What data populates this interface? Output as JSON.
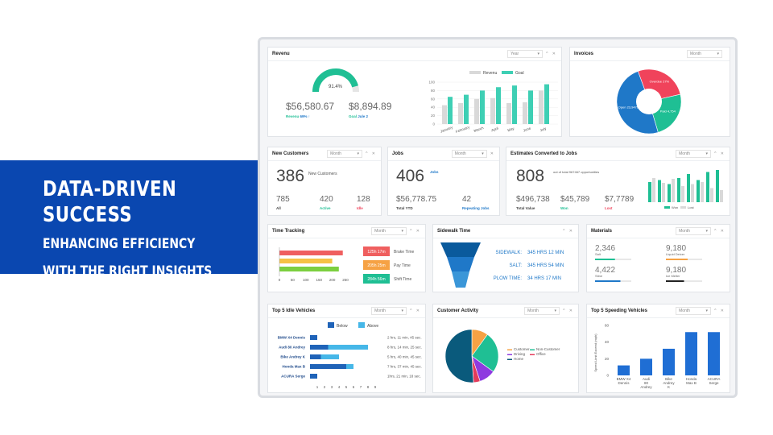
{
  "banner": {
    "title": "DATA-DRIVEN SUCCESS",
    "line1": "ENHANCING EFFICIENCY",
    "line2": "WITH THE RIGHT INSIGHTS"
  },
  "revenue": {
    "title": "Revenu",
    "period": "Year",
    "gauge_pct": "91.4%",
    "gauge_value": 0.914,
    "revenue_value": "$56,580.67",
    "revenue_label": "Revenu",
    "revenue_pct": "69% ↑",
    "goal_value": "$8,894.89",
    "goal_label": "Goal",
    "goal_date": "Jule 2",
    "chart": {
      "legend": [
        "Revenu",
        "Goal"
      ],
      "yticks": [
        "100",
        "80",
        "60",
        "40",
        "20",
        "0"
      ],
      "months": [
        "January",
        "February",
        "March",
        "April",
        "May",
        "June",
        "July"
      ],
      "revenu": [
        45,
        50,
        60,
        62,
        50,
        52,
        80
      ],
      "goal": [
        65,
        70,
        80,
        88,
        92,
        80,
        95
      ],
      "colors": [
        "#d9d9d9",
        "#3ecfb4"
      ]
    }
  },
  "invoices": {
    "title": "Invoices",
    "period": "Month",
    "slices": [
      {
        "label": "Overdue 27%",
        "value": 27,
        "color": "#f0435b"
      },
      {
        "label": "Paid 4,754",
        "value": 24,
        "color": "#1fbf94"
      },
      {
        "label": "Open 23,9478",
        "value": 49,
        "color": "#1f78c8"
      }
    ]
  },
  "new_customers": {
    "title": "New Customers",
    "period": "Month",
    "value": "386",
    "label": "New Customers",
    "all_value": "785",
    "all_label": "All",
    "active_value": "420",
    "active_label": "Active",
    "idle_value": "128",
    "idle_label": "Idle"
  },
  "jobs": {
    "title": "Jobs",
    "period": "Month",
    "value": "406",
    "tag": "Jobs",
    "ytd_value": "$56,778.75",
    "ytd_label": "Total YTD",
    "rep_value": "42",
    "rep_label": "Repeating Jobs"
  },
  "estimates": {
    "title": "Estimates Converted to Jobs",
    "period": "Month",
    "value": "808",
    "desc": "out of total 967467 opportunities",
    "total_value": "$496,738",
    "total_label": "Total Value",
    "won_value": "$45,789",
    "won_label": "Won",
    "lost_value": "$7,7789",
    "lost_label": "Lost",
    "legend": [
      "Won",
      "Lost"
    ],
    "won": [
      50,
      55,
      45,
      60,
      70,
      55,
      75,
      80
    ],
    "lost": [
      60,
      48,
      58,
      40,
      45,
      50,
      35,
      30
    ]
  },
  "time_tracking": {
    "title": "Time Tracking",
    "period": "Month",
    "xticks": [
      "0",
      "50",
      "100",
      "150",
      "200",
      "250"
    ],
    "bars": [
      {
        "value": 240,
        "color": "#ef5f5f"
      },
      {
        "value": 200,
        "color": "#f6c244"
      },
      {
        "value": 225,
        "color": "#7ccf3f"
      }
    ],
    "badges": [
      {
        "text": "125h 17m",
        "label": "Brake Time",
        "color": "#ef5f5f"
      },
      {
        "text": "205h 25m",
        "label": "Pay Time",
        "color": "#f6a244"
      },
      {
        "text": "284h 56m",
        "label": "Shift Time",
        "color": "#1fbf94"
      }
    ]
  },
  "sidewalk": {
    "title": "Sidewalk Time",
    "rows": [
      {
        "label": "SIDEWALK:",
        "value": "345 HRS 12 MIN"
      },
      {
        "label": "SALT:",
        "value": "345 HRS 54 MIN"
      },
      {
        "label": "PLOW TIME:",
        "value": "34 HRS 17 MIN"
      }
    ]
  },
  "materials": {
    "title": "Materials",
    "period": "Month",
    "items": [
      {
        "value": "2,346",
        "label": "Salt",
        "color": "#1fbf94",
        "fill": 0.55
      },
      {
        "value": "9,180",
        "label": "Liquid Deicer",
        "color": "#f6a244",
        "fill": 0.6
      },
      {
        "value": "4,422",
        "label": "Stine",
        "color": "#1f78c8",
        "fill": 0.7
      },
      {
        "value": "9,180",
        "label": "Ice Melter",
        "color": "#222",
        "fill": 0.5
      }
    ]
  },
  "idle": {
    "title": "Top 5 Idle Vehicles",
    "period": "Month",
    "legend": [
      "Below",
      "Above"
    ],
    "xticks": [
      "1",
      "2",
      "3",
      "4",
      "5",
      "6",
      "7",
      "8",
      "9"
    ],
    "rows": [
      {
        "name": "BMW X4 Dennis",
        "below": 1,
        "above": 1,
        "time": "2 hrs, 11 min, 45 sec."
      },
      {
        "name": "Audi 80 Andrey",
        "below": 2.5,
        "above": 8,
        "time": "8 hrs, 14 min, 25 sec."
      },
      {
        "name": "Bike Andrey K",
        "below": 1.5,
        "above": 4,
        "time": "5 hrs, 40 min, 45 sec."
      },
      {
        "name": "Honda Max B",
        "below": 5,
        "above": 6,
        "time": "7 hrs, 37 min, 45 sec."
      },
      {
        "name": "ACURA Serge",
        "below": 1,
        "above": 0,
        "time": "1hrs, 21 min, 18 sec."
      }
    ]
  },
  "activity": {
    "title": "Customer Activity",
    "period": "Month",
    "slices": [
      {
        "label": "Customer",
        "value": 10,
        "color": "#f6a244"
      },
      {
        "label": "Non-Customer",
        "value": 25,
        "color": "#1fbf94"
      },
      {
        "label": "Driving",
        "value": 10,
        "color": "#8e3ae0"
      },
      {
        "label": "Office",
        "value": 4,
        "color": "#e43b5b"
      },
      {
        "label": "Home",
        "value": 51,
        "color": "#0a5a7c"
      }
    ]
  },
  "speeding": {
    "title": "Top 5 Speeding Vehicles",
    "period": "Month",
    "ylabel": "Speed Limit Exceed (mph)",
    "yticks": [
      "60",
      "40",
      "20",
      "0"
    ],
    "names": [
      "BMW X4 Dennis",
      "Audi 80 Andrey",
      "Bike Andrey K",
      "Honda Max B",
      "ACURA Serge"
    ],
    "values": [
      12,
      20,
      32,
      52,
      52
    ]
  }
}
